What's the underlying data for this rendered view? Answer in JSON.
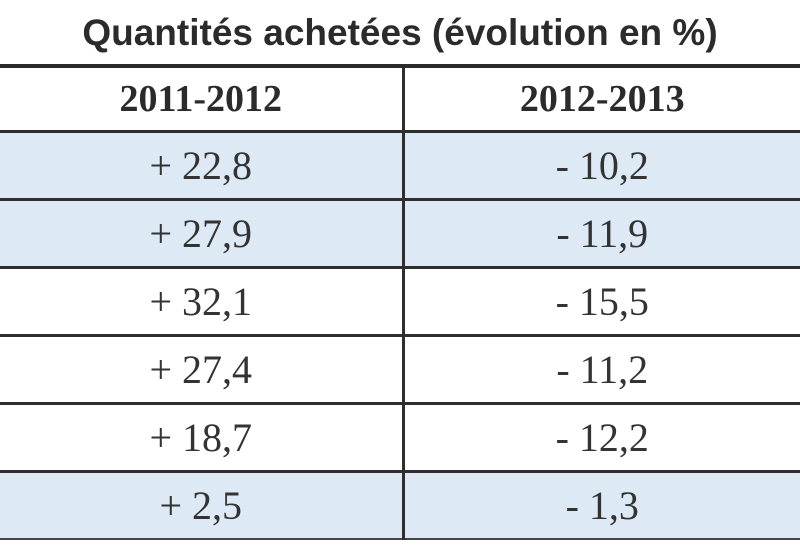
{
  "table": {
    "title": "Quantités achetées (évolution en %)",
    "headers": [
      "2011-2012",
      "2012-2013"
    ],
    "rows": [
      {
        "c1": "+ 22,8",
        "c2": "- 10,2",
        "shade": "#ddeaf6"
      },
      {
        "c1": "+ 27,9",
        "c2": "- 11,9",
        "shade": "#ddeaf6"
      },
      {
        "c1": "+ 32,1",
        "c2": "- 15,5",
        "shade": "#ffffff"
      },
      {
        "c1": "+ 27,4",
        "c2": "- 11,2",
        "shade": "#ffffff"
      },
      {
        "c1": "+ 18,7",
        "c2": "- 12,2",
        "shade": "#ffffff"
      },
      {
        "c1": "+ 2,5",
        "c2": "- 1,3",
        "shade": "#ddeaf6"
      }
    ]
  },
  "colors": {
    "row_highlight": "#ddeaf6",
    "rule": "#2e2e2e",
    "text": "#2b2b2b"
  }
}
